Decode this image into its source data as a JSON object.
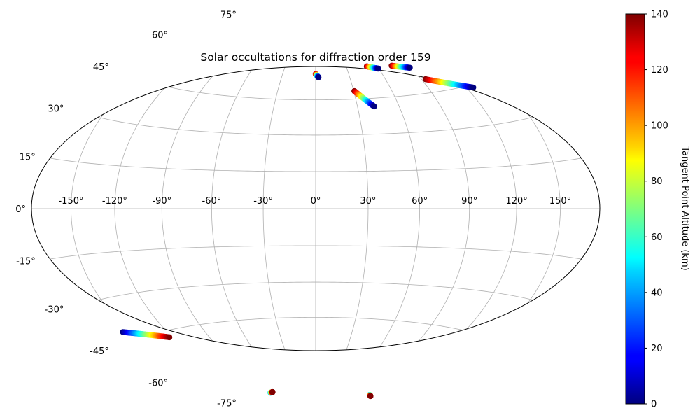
{
  "chart_data": {
    "type": "scatter",
    "projection": "hammer",
    "title": "Solar occultations for diffraction order 159",
    "xlabel": "",
    "ylabel": "",
    "grid": true,
    "longitude_ticks": [
      "-150°",
      "-120°",
      "-90°",
      "-60°",
      "-30°",
      "0°",
      "30°",
      "60°",
      "90°",
      "120°",
      "150°"
    ],
    "latitude_ticks": [
      "-75°",
      "-60°",
      "-45°",
      "-30°",
      "-15°",
      "0°",
      "15°",
      "30°",
      "45°",
      "60°",
      "75°"
    ],
    "colorbar": {
      "label": "Tangent Point Altitude (km)",
      "colormap": "jet",
      "range": [
        0,
        140
      ],
      "ticks": [
        "0",
        "20",
        "40",
        "60",
        "80",
        "100",
        "120",
        "140"
      ]
    },
    "series": [
      {
        "start": {
          "lon": 0.0,
          "lat": 56.5,
          "alt": 140
        },
        "end": {
          "lon": 2.5,
          "lat": 55.0,
          "alt": 0
        }
      },
      {
        "start": {
          "lon": 30.5,
          "lat": 48.5,
          "alt": 140
        },
        "end": {
          "lon": 42.0,
          "lat": 41.5,
          "alt": 0
        }
      },
      {
        "start": {
          "lon": 50.0,
          "lat": 59.0,
          "alt": 140
        },
        "end": {
          "lon": 59.5,
          "lat": 57.5,
          "alt": 0
        }
      },
      {
        "start": {
          "lon": 74.0,
          "lat": 58.0,
          "alt": 140
        },
        "end": {
          "lon": 89.0,
          "lat": 56.0,
          "alt": 0
        }
      },
      {
        "start": {
          "lon": 93.5,
          "lat": 50.5,
          "alt": 140
        },
        "end": {
          "lon": 125.5,
          "lat": 44.0,
          "alt": 0
        }
      },
      {
        "start": {
          "lon": -155.0,
          "lat": -41.5,
          "alt": 0
        },
        "end": {
          "lon": -122.5,
          "lat": -47.5,
          "alt": 140
        }
      },
      {
        "start": {
          "lon": -103.0,
          "lat": -77.5,
          "alt": 40
        },
        "end": {
          "lon": -97.0,
          "lat": -77.5,
          "alt": 140
        }
      },
      {
        "start": {
          "lon": 125.0,
          "lat": -77.0,
          "alt": 40
        },
        "end": {
          "lon": 131.0,
          "lat": -77.2,
          "alt": 140
        }
      }
    ]
  }
}
